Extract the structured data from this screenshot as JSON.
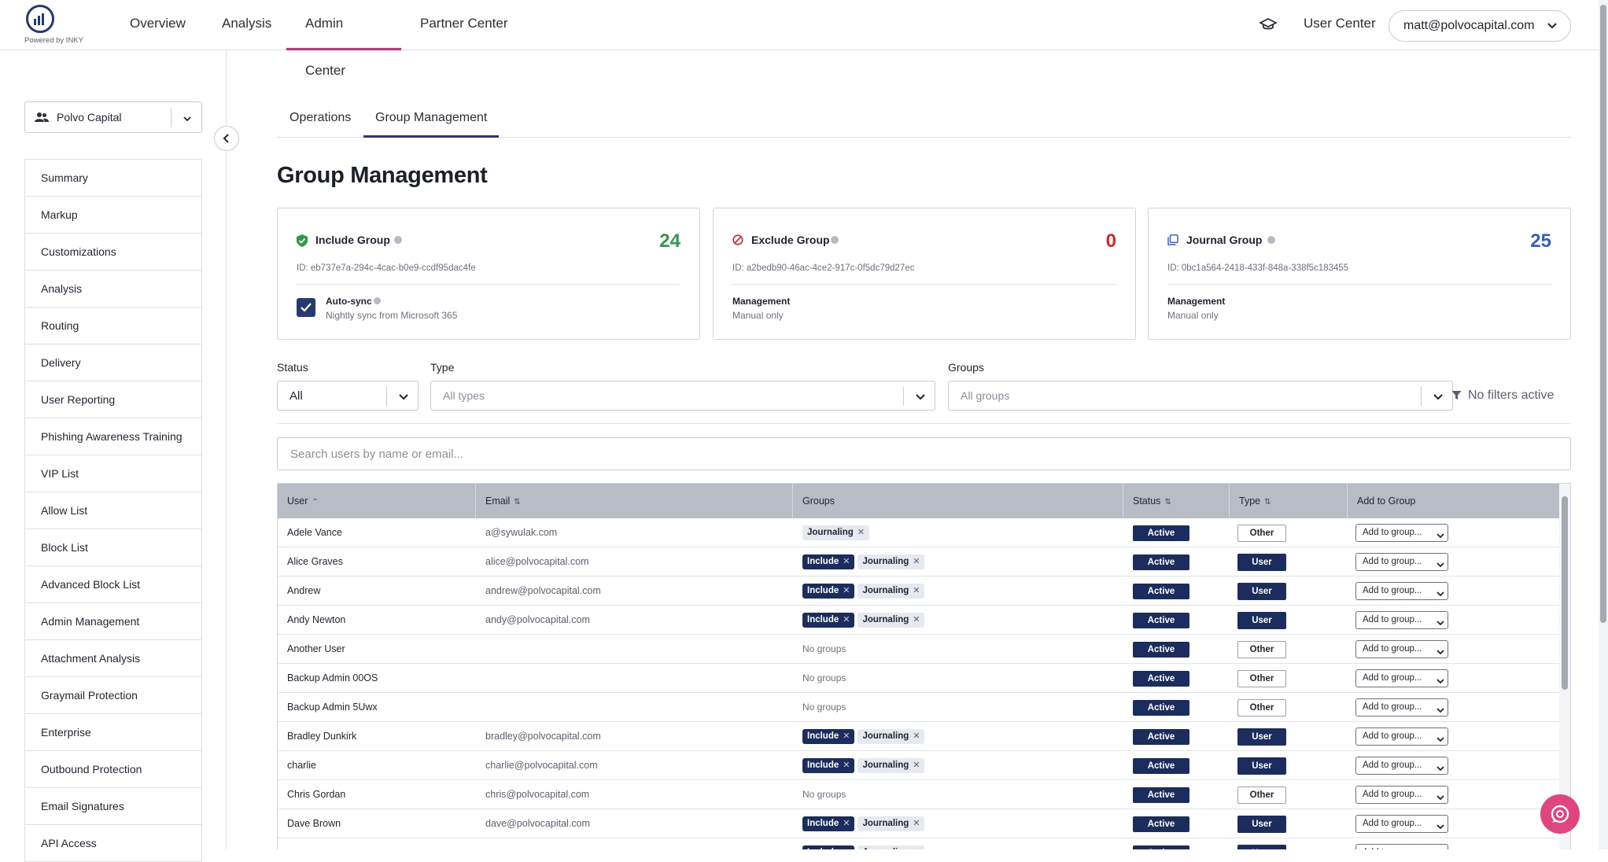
{
  "brand": {
    "powered_by": "Powered by INKY"
  },
  "nav": {
    "tabs": [
      "Overview",
      "Analysis",
      "Admin Center",
      "Partner Center"
    ],
    "active_tab": "Admin Center",
    "user_center": "User Center",
    "account": "matt@polvocapital.com"
  },
  "sidebar": {
    "org": "Polvo Capital",
    "items": [
      "Summary",
      "Markup",
      "Customizations",
      "Analysis",
      "Routing",
      "Delivery",
      "User Reporting",
      "Phishing Awareness Training",
      "VIP List",
      "Allow List",
      "Block List",
      "Advanced Block List",
      "Admin Management",
      "Attachment Analysis",
      "Graymail Protection",
      "Enterprise",
      "Outbound Protection",
      "Email Signatures",
      "API Access"
    ]
  },
  "tabs": {
    "operations": "Operations",
    "group_management": "Group Management",
    "active": "Group Management"
  },
  "page_title": "Group Management",
  "cards": {
    "include": {
      "title": "Include Group",
      "count": "24",
      "id": "ID: eb737e7a-294c-4cac-b0e9-ccdf95dac4fe",
      "auto_sync_title": "Auto-sync",
      "auto_sync_sub": "Nightly sync from Microsoft 365",
      "auto_sync_checked": true,
      "color": "#2e9a47"
    },
    "exclude": {
      "title": "Exclude Group",
      "count": "0",
      "id": "ID: a2bedb90-46ac-4ce2-917c-0f5dc79d27ec",
      "mgmt_title": "Management",
      "mgmt_sub": "Manual only",
      "color": "#d12a2a"
    },
    "journal": {
      "title": "Journal Group",
      "count": "25",
      "id": "ID: 0bc1a564-2418-433f-848a-338f5c183455",
      "mgmt_title": "Management",
      "mgmt_sub": "Manual only",
      "color": "#2f5fc4"
    }
  },
  "filters": {
    "status_label": "Status",
    "status_value": "All",
    "type_label": "Type",
    "type_placeholder": "All types",
    "groups_label": "Groups",
    "groups_placeholder": "All groups",
    "no_filters": "No filters active"
  },
  "search": {
    "placeholder": "Search users by name or email..."
  },
  "table": {
    "headers": {
      "user": "User",
      "email": "Email",
      "groups": "Groups",
      "status": "Status",
      "type": "Type",
      "add": "Add to Group"
    },
    "add_placeholder": "Add to group...",
    "no_groups": "No groups",
    "chip_include": "Include",
    "chip_journal": "Journaling",
    "rows": [
      {
        "user": "Adele Vance",
        "email": "a@sywulak.com",
        "groups": [
          "Journaling"
        ],
        "status": "Active",
        "type": "Other"
      },
      {
        "user": "Alice Graves",
        "email": "alice@polvocapital.com",
        "groups": [
          "Include",
          "Journaling"
        ],
        "status": "Active",
        "type": "User"
      },
      {
        "user": "Andrew",
        "email": "andrew@polvocapital.com",
        "groups": [
          "Include",
          "Journaling"
        ],
        "status": "Active",
        "type": "User"
      },
      {
        "user": "Andy Newton",
        "email": "andy@polvocapital.com",
        "groups": [
          "Include",
          "Journaling"
        ],
        "status": "Active",
        "type": "User"
      },
      {
        "user": "Another User",
        "email": "",
        "groups": [],
        "status": "Active",
        "type": "Other"
      },
      {
        "user": "Backup Admin 00OS",
        "email": "",
        "groups": [],
        "status": "Active",
        "type": "Other"
      },
      {
        "user": "Backup Admin 5Uwx",
        "email": "",
        "groups": [],
        "status": "Active",
        "type": "Other"
      },
      {
        "user": "Bradley Dunkirk",
        "email": "bradley@polvocapital.com",
        "groups": [
          "Include",
          "Journaling"
        ],
        "status": "Active",
        "type": "User"
      },
      {
        "user": "charlie",
        "email": "charlie@polvocapital.com",
        "groups": [
          "Include",
          "Journaling"
        ],
        "status": "Active",
        "type": "User"
      },
      {
        "user": "Chris Gordan",
        "email": "chris@polvocapital.com",
        "groups": [],
        "status": "Active",
        "type": "Other"
      },
      {
        "user": "Dave Brown",
        "email": "dave@polvocapital.com",
        "groups": [
          "Include",
          "Journaling"
        ],
        "status": "Active",
        "type": "User"
      },
      {
        "user": "",
        "email": "",
        "groups": [
          "Include",
          "Journaling"
        ],
        "status": "Active",
        "type": "User"
      }
    ]
  }
}
